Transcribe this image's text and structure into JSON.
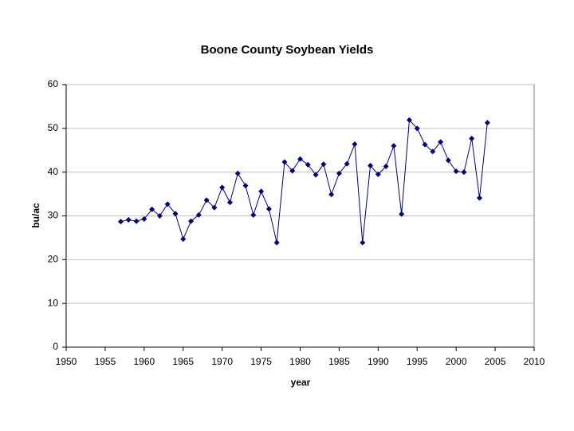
{
  "chart_data": {
    "type": "line",
    "title": "Boone County Soybean Yields",
    "x_label": "year",
    "y_label": "bu/ac",
    "x": [
      1957,
      1958,
      1959,
      1960,
      1961,
      1962,
      1963,
      1964,
      1965,
      1966,
      1967,
      1968,
      1969,
      1970,
      1971,
      1972,
      1973,
      1974,
      1975,
      1976,
      1977,
      1978,
      1979,
      1980,
      1981,
      1982,
      1983,
      1984,
      1985,
      1986,
      1987,
      1988,
      1989,
      1990,
      1991,
      1992,
      1993,
      1994,
      1995,
      1996,
      1997,
      1998,
      1999,
      2000,
      2001,
      2002,
      2003,
      2004
    ],
    "values": [
      28.7,
      29.1,
      28.8,
      29.3,
      31.5,
      30.0,
      32.7,
      30.5,
      24.7,
      28.8,
      30.2,
      33.6,
      31.9,
      36.5,
      33.1,
      39.7,
      36.9,
      30.2,
      35.6,
      31.6,
      23.9,
      42.3,
      40.3,
      43.0,
      41.7,
      39.4,
      41.8,
      34.9,
      39.7,
      41.9,
      46.4,
      23.9,
      41.5,
      39.5,
      41.3,
      46.0,
      30.4,
      51.9,
      50.0,
      46.3,
      44.7,
      46.9,
      42.7,
      40.2,
      40.0,
      47.7,
      34.1,
      51.3
    ],
    "color": "#000080",
    "xlim": [
      1950,
      2010
    ],
    "xticks": [
      1950,
      1955,
      1960,
      1965,
      1970,
      1975,
      1980,
      1985,
      1990,
      1995,
      2000,
      2005,
      2010
    ],
    "ylim": [
      0,
      60
    ],
    "yticks": [
      0,
      10,
      20,
      30,
      40,
      50,
      60
    ],
    "grid": true
  }
}
